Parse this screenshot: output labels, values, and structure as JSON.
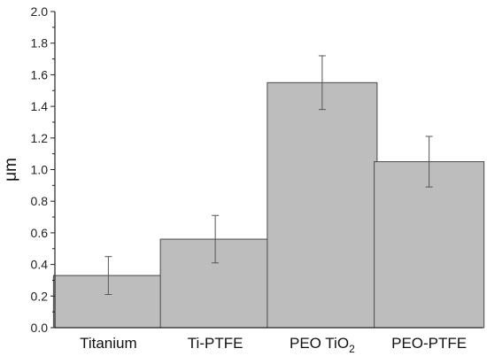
{
  "chart_data": {
    "type": "bar",
    "title": "",
    "xlabel": "",
    "ylabel": "μm",
    "ylim": [
      0,
      2.0
    ],
    "yticks": [
      "0.0",
      "0.2",
      "0.4",
      "0.6",
      "0.8",
      "1.0",
      "1.2",
      "1.4",
      "1.6",
      "1.8",
      "2.0"
    ],
    "categories": [
      {
        "text": "Titanium",
        "sub": ""
      },
      {
        "text": "Ti-PTFE",
        "sub": ""
      },
      {
        "text": "PEO TiO",
        "sub": "2"
      },
      {
        "text": "PEO-PTFE",
        "sub": ""
      }
    ],
    "values": [
      0.33,
      0.56,
      1.55,
      1.05
    ],
    "errors": [
      0.12,
      0.15,
      0.17,
      0.16
    ],
    "grid": false,
    "legend": "none",
    "colors": {
      "bar_fill": "#bdbdbd",
      "bar_stroke": "#4a4a4a",
      "axis": "#222222",
      "error_bar": "#555555"
    }
  }
}
